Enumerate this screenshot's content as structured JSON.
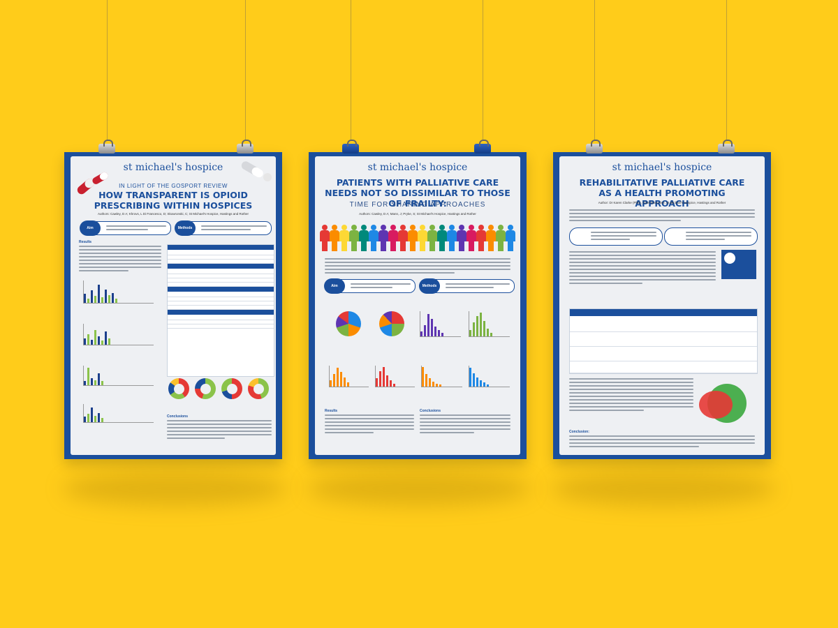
{
  "colors": {
    "background": "#FFCC1A",
    "frame": "#1b4f9c",
    "paper": "#eef0f3",
    "text_accent": "#1b4f9c"
  },
  "posters": [
    {
      "brand": "st michael's hospice",
      "overline": "IN LIGHT OF THE GOSPORT REVIEW",
      "title": "HOW TRANSPARENT IS OPIOID PRESCRIBING WITHIN HOSPICES",
      "authors": "Authors: Cawley, D A; Khrovs, L Di Francesco, D; Skowronski, C; St Michael's Hospice, Hastings and Rother",
      "aim_label": "Aim",
      "methods_label": "Methods",
      "results_label": "Results",
      "conclusions_label": "Conclusions"
    },
    {
      "brand": "st michael's hospice",
      "title": "PATIENTS WITH PALLIATIVE CARE NEEDS NOT SO DISSIMILAR TO THOSE OF FRAILTY:",
      "subtitle": "TIME FOR SHARING APPROACHES",
      "authors": "Authors: Cawley, D A; Mann, J; Pryke, S; St Michael's Hospice, Hastings and Rother",
      "aim_label": "Aim",
      "methods_label": "Methods",
      "results_label": "Results",
      "conclusions_label": "Conclusions"
    },
    {
      "brand": "st michael's hospice",
      "title": "REHABILITATIVE PALLIATIVE CARE AS A HEALTH PROMOTING APPROACH",
      "authors": "Author: Dr Karen Clarke (PhD), Chief Executive, St Michael's Hospice, Hastings and Rother",
      "conclusion_label": "Conclusion:"
    }
  ]
}
